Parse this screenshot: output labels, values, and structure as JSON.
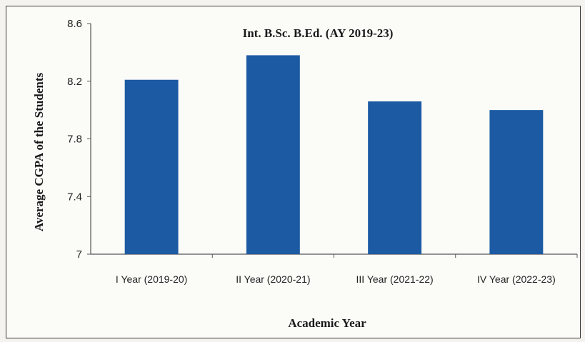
{
  "chart_data": {
    "type": "bar",
    "title": "Int. B.Sc. B.Ed. (AY 2019-23)",
    "xlabel": "Academic Year",
    "ylabel": "Average CGPA of the Students",
    "categories": [
      "I Year (2019-20)",
      "II Year (2020-21)",
      "III Year (2021-22)",
      "IV Year (2022-23)"
    ],
    "values": [
      8.21,
      8.38,
      8.06,
      8.0
    ],
    "ylim": [
      7,
      8.6
    ],
    "yticks": [
      "7",
      "7.4",
      "7.8",
      "8.2",
      "8.6"
    ],
    "grid": false,
    "bar_color": "#1c5aa3"
  }
}
